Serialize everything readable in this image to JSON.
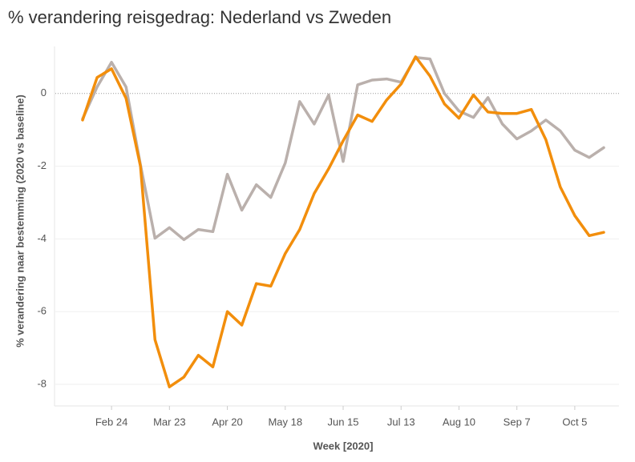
{
  "chart_data": {
    "type": "line",
    "title": "% verandering reisgedrag: Nederland vs Zweden",
    "x_label": "Week [2020]",
    "y_label": "% verandering naar bestemming (2020 vs baseline)",
    "categories": [
      null,
      null,
      "Feb 24",
      null,
      null,
      null,
      "Mar 23",
      null,
      null,
      null,
      "Apr 20",
      null,
      null,
      null,
      "May 18",
      null,
      null,
      null,
      "Jun 15",
      null,
      null,
      null,
      "Jul 13",
      null,
      null,
      null,
      "Aug 10",
      null,
      null,
      null,
      "Sep 7",
      null,
      null,
      null,
      "Oct 5",
      null,
      null
    ],
    "series": [
      {
        "color": "#bab0ac",
        "values": [
          -0.7,
          0.18,
          0.86,
          0.18,
          -1.96,
          -3.98,
          -3.69,
          -4.02,
          -3.74,
          -3.8,
          -2.22,
          -3.21,
          -2.51,
          -2.86,
          -1.91,
          -0.22,
          -0.84,
          -0.04,
          -1.87,
          0.24,
          0.37,
          0.4,
          0.31,
          0.99,
          0.95,
          0.0,
          -0.48,
          -0.66,
          -0.11,
          -0.84,
          -1.25,
          -1.03,
          -0.73,
          -1.03,
          -1.56,
          -1.76,
          -1.49
        ]
      },
      {
        "color": "#f28e0c",
        "values": [
          -0.73,
          0.44,
          0.68,
          -0.13,
          -2.0,
          -6.77,
          -8.07,
          -7.8,
          -7.2,
          -7.52,
          -6.0,
          -6.37,
          -5.23,
          -5.3,
          -4.4,
          -3.74,
          -2.75,
          -2.07,
          -1.3,
          -0.59,
          -0.77,
          -0.18,
          0.26,
          1.01,
          0.48,
          -0.29,
          -0.68,
          -0.04,
          -0.51,
          -0.55,
          -0.55,
          -0.44,
          -1.27,
          -2.57,
          -3.36,
          -3.91,
          -3.82
        ]
      }
    ],
    "ylim": [
      -8.55,
      1.25
    ],
    "yticks": [
      -8,
      -6,
      -4,
      -2,
      0
    ],
    "grid": true
  }
}
